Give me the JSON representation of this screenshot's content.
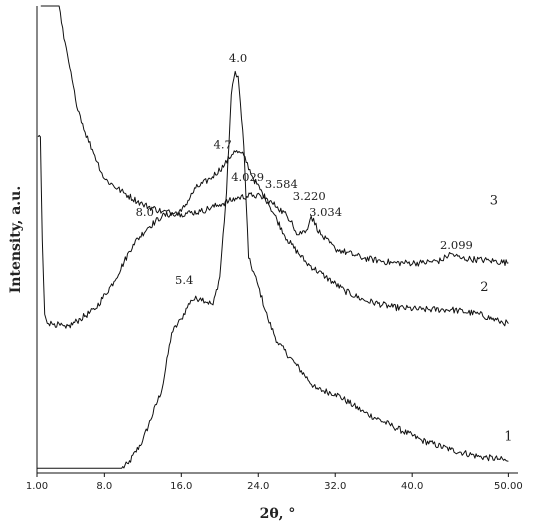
{
  "chart_data": {
    "type": "line",
    "title": "",
    "xlabel": "2θ, °",
    "ylabel": "Intensity, a.u.",
    "xlim": [
      1,
      51
    ],
    "ylim": [
      0,
      100
    ],
    "y_ticks_shown": false,
    "grid": false,
    "legend": "none",
    "x_ticks": [
      {
        "value": 1,
        "label": "1.00"
      },
      {
        "value": 8,
        "label": "8.0"
      },
      {
        "value": 16,
        "label": "16.0"
      },
      {
        "value": 24,
        "label": "24.0"
      },
      {
        "value": 32,
        "label": "32.0"
      },
      {
        "value": 40,
        "label": "40.0"
      },
      {
        "value": 50,
        "label": "50.00"
      }
    ],
    "series": [
      {
        "name": "1",
        "x": [
          1,
          9.8,
          10.5,
          12,
          14,
          15,
          16,
          17,
          18,
          19.3,
          20,
          20.7,
          21.2,
          21.6,
          21.9,
          22.5,
          23,
          24,
          25,
          26,
          28,
          30,
          32,
          35,
          38,
          41,
          44,
          47,
          49,
          50
        ],
        "y": [
          1,
          1,
          2,
          7,
          18,
          30,
          33,
          37,
          37.5,
          36,
          42,
          60,
          81,
          86,
          85,
          70,
          46,
          40,
          33,
          28,
          23,
          18,
          17,
          13,
          10,
          7,
          5,
          3.5,
          3,
          2.5
        ],
        "label_at": [
          50,
          7
        ]
      },
      {
        "name": "2",
        "x": [
          1.1,
          1.35,
          1.55,
          1.8,
          2.2,
          2.8,
          4,
          5.5,
          7,
          9,
          11,
          12.5,
          14,
          16,
          17.5,
          19,
          20.5,
          21.5,
          22.5,
          23.5,
          25,
          27,
          29,
          31,
          33,
          35,
          38,
          41,
          44,
          47,
          49,
          50
        ],
        "y": [
          72,
          72,
          50,
          34,
          32,
          32,
          31,
          33,
          35,
          41,
          49,
          52.5,
          55,
          56,
          61,
          63,
          66,
          69,
          68,
          63,
          58,
          50,
          45,
          42,
          39,
          37,
          35.5,
          35,
          35,
          34,
          32.5,
          32
        ],
        "label_at": [
          47.5,
          39
        ]
      },
      {
        "name": "3",
        "x": [
          1.4,
          3.3,
          3.8,
          4.3,
          5,
          6,
          7,
          8,
          10,
          12,
          14,
          16,
          18,
          20,
          22,
          23.5,
          24.5,
          26,
          27.5,
          28,
          29,
          29.5,
          30.5,
          32,
          35,
          38,
          41,
          43,
          44,
          45,
          48,
          50
        ],
        "y": [
          100,
          100,
          93,
          88,
          80,
          73,
          68,
          63,
          60,
          57.5,
          56,
          55.5,
          56,
          57.5,
          59,
          59.5,
          59,
          57,
          54,
          51,
          52,
          55,
          51,
          48,
          46,
          45,
          45,
          45.5,
          47,
          46,
          45.5,
          45
        ],
        "label_at": [
          48.5,
          57.5
        ]
      }
    ],
    "annotations": [
      {
        "text": "5.4",
        "x": 16.3,
        "y": 40.5
      },
      {
        "text": "4.0",
        "x": 21.9,
        "y": 88
      },
      {
        "text": "4.7",
        "x": 20.3,
        "y": 69.5
      },
      {
        "text": "8.0",
        "x": 12.2,
        "y": 55
      },
      {
        "text": "4.029",
        "x": 22.9,
        "y": 62.5
      },
      {
        "text": "3.584",
        "x": 26.4,
        "y": 61
      },
      {
        "text": "3.220",
        "x": 29.3,
        "y": 58.5
      },
      {
        "text": "3.034",
        "x": 31,
        "y": 55
      },
      {
        "text": "2.099",
        "x": 44.6,
        "y": 48
      }
    ]
  }
}
